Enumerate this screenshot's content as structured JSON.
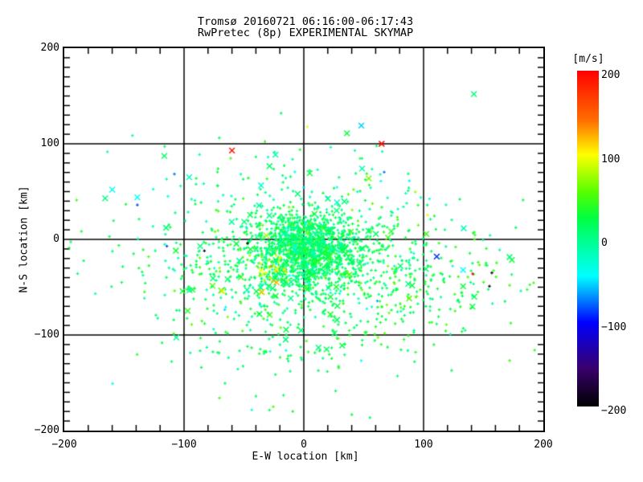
{
  "title": {
    "line1": "Tromsø 20160721 06:16:00-06:17:43",
    "line2": "RwPretec (8p) EXPERIMENTAL SKYMAP"
  },
  "colorbar": {
    "unit_label": "[m/s]",
    "ticks": [
      {
        "v": 200,
        "label": "200"
      },
      {
        "v": 100,
        "label": "100"
      },
      {
        "v": 0,
        "label": "0"
      },
      {
        "v": -100,
        "label": "−100"
      },
      {
        "v": -200,
        "label": "−200"
      }
    ]
  },
  "chart_data": {
    "type": "scatter",
    "title": "Tromsø 20160721 06:16:00-06:17:43 / RwPretec (8p) EXPERIMENTAL SKYMAP",
    "xlabel": "E-W location [km]",
    "ylabel": "N-S location [km]",
    "xlim": [
      -200,
      200
    ],
    "ylim": [
      -200,
      200
    ],
    "grid": true,
    "gridlines_at": [
      -100,
      0,
      100
    ],
    "x_ticks": [
      {
        "v": -200,
        "label": "−200"
      },
      {
        "v": -100,
        "label": "−100"
      },
      {
        "v": 0,
        "label": "0"
      },
      {
        "v": 100,
        "label": "100"
      },
      {
        "v": 200,
        "label": "200"
      }
    ],
    "y_ticks": [
      {
        "v": 200,
        "label": "200"
      },
      {
        "v": 100,
        "label": "100"
      },
      {
        "v": 0,
        "label": "0"
      },
      {
        "v": -100,
        "label": "−100"
      },
      {
        "v": -200,
        "label": "−200"
      }
    ],
    "x_minor_step": 20,
    "y_minor_step": 10,
    "tick_len": 7,
    "color_scale": {
      "unit": "m/s",
      "range": [
        -200,
        200
      ],
      "stops": [
        {
          "v": 200,
          "c": "#ff0000"
        },
        {
          "v": 140,
          "c": "#ff7000"
        },
        {
          "v": 100,
          "c": "#ffff00"
        },
        {
          "v": 55,
          "c": "#55ff00"
        },
        {
          "v": 25,
          "c": "#00ff40"
        },
        {
          "v": 0,
          "c": "#00ff88"
        },
        {
          "v": -45,
          "c": "#00ffff"
        },
        {
          "v": -100,
          "c": "#0000ff"
        },
        {
          "v": -155,
          "c": "#38006b"
        },
        {
          "v": -200,
          "c": "#000000"
        }
      ]
    },
    "seed": 20160721,
    "clusters": [
      {
        "n": 1100,
        "cx": 2,
        "cy": -8,
        "sx": 22,
        "sy": 18,
        "vmean": 10,
        "vsd": 16,
        "big_prob": 0.04
      },
      {
        "n": 600,
        "cx": 8,
        "cy": -18,
        "sx": 48,
        "sy": 34,
        "vmean": 14,
        "vsd": 20,
        "big_prob": 0.08
      },
      {
        "n": 280,
        "cx": 5,
        "cy": -25,
        "sx": 85,
        "sy": 60,
        "vmean": 12,
        "vsd": 24,
        "big_prob": 0.12
      },
      {
        "n": 170,
        "cx": 95,
        "cy": -42,
        "sx": 42,
        "sy": 30,
        "vmean": 30,
        "vsd": 16,
        "big_prob": 0.1
      },
      {
        "n": 110,
        "cx": -65,
        "cy": -25,
        "sx": 38,
        "sy": 32,
        "vmean": 5,
        "vsd": 24,
        "big_prob": 0.1
      },
      {
        "n": 70,
        "cx": -5,
        "cy": -115,
        "sx": 55,
        "sy": 28,
        "vmean": 15,
        "vsd": 14,
        "big_prob": 0.06
      },
      {
        "n": 45,
        "cx": -15,
        "cy": 70,
        "sx": 55,
        "sy": 25,
        "vmean": -5,
        "vsd": 24,
        "big_prob": 0.15
      },
      {
        "n": 25,
        "cx": -25,
        "cy": -28,
        "sx": 10,
        "sy": 9,
        "vmean": 95,
        "vsd": 18,
        "big_prob": 0.1
      }
    ],
    "outliers": [
      {
        "x": -160,
        "y": 52,
        "v": -40,
        "size": "big"
      },
      {
        "x": -139,
        "y": 44,
        "v": -40,
        "size": "big"
      },
      {
        "x": -139,
        "y": 36,
        "v": -85,
        "size": "small"
      },
      {
        "x": 142,
        "y": 152,
        "v": 8,
        "size": "big"
      },
      {
        "x": 48,
        "y": 119,
        "v": -55,
        "size": "big"
      },
      {
        "x": 36,
        "y": 111,
        "v": 28,
        "size": "big"
      },
      {
        "x": 65,
        "y": 100,
        "v": 195,
        "size": "big"
      },
      {
        "x": -60,
        "y": 93,
        "v": 190,
        "size": "big"
      },
      {
        "x": 3,
        "y": 118,
        "v": 95,
        "size": "small"
      },
      {
        "x": -19,
        "y": 132,
        "v": 10,
        "size": "small"
      },
      {
        "x": -47,
        "y": -4,
        "v": -195,
        "size": "small"
      },
      {
        "x": -83,
        "y": -12,
        "v": -195,
        "size": "small"
      },
      {
        "x": -68,
        "y": -54,
        "v": 105,
        "size": "big"
      },
      {
        "x": -35,
        "y": -55,
        "v": 115,
        "size": "big"
      },
      {
        "x": 111,
        "y": -18,
        "v": -90,
        "size": "big"
      },
      {
        "x": 133,
        "y": -32,
        "v": -45,
        "size": "big"
      },
      {
        "x": 133,
        "y": -49,
        "v": 28,
        "size": "big"
      },
      {
        "x": 141,
        "y": -36,
        "v": 200,
        "size": "small"
      },
      {
        "x": 157,
        "y": -35,
        "v": -195,
        "size": "small"
      },
      {
        "x": 155,
        "y": -49,
        "v": -195,
        "size": "small"
      },
      {
        "x": 32,
        "y": -111,
        "v": 20,
        "size": "big"
      },
      {
        "x": 19,
        "y": -115,
        "v": 15,
        "size": "big"
      },
      {
        "x": -40,
        "y": -164,
        "v": 10,
        "size": "small"
      },
      {
        "x": -17,
        "y": -163,
        "v": 12,
        "size": "small"
      }
    ]
  }
}
